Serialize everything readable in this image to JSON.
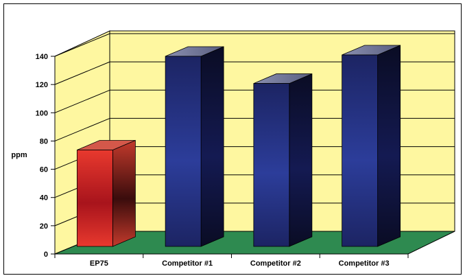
{
  "chart_data": {
    "type": "bar",
    "style": "3d",
    "categories": [
      "EP75",
      "Competitor #1",
      "Competitor #2",
      "Competitor #3"
    ],
    "values": [
      71,
      140,
      120,
      141
    ],
    "ylabel": "ppm",
    "xlabel": "",
    "title": "",
    "ylim": [
      0,
      140
    ],
    "yticks": [
      0,
      20,
      40,
      60,
      80,
      100,
      120,
      140
    ],
    "grid": true,
    "legend": "none",
    "colors": {
      "highlight_bar": "#d4292a",
      "bars": "#2c3a8c",
      "wall": "#fef7a0",
      "floor": "#2e8a50",
      "border": "#000000"
    }
  }
}
